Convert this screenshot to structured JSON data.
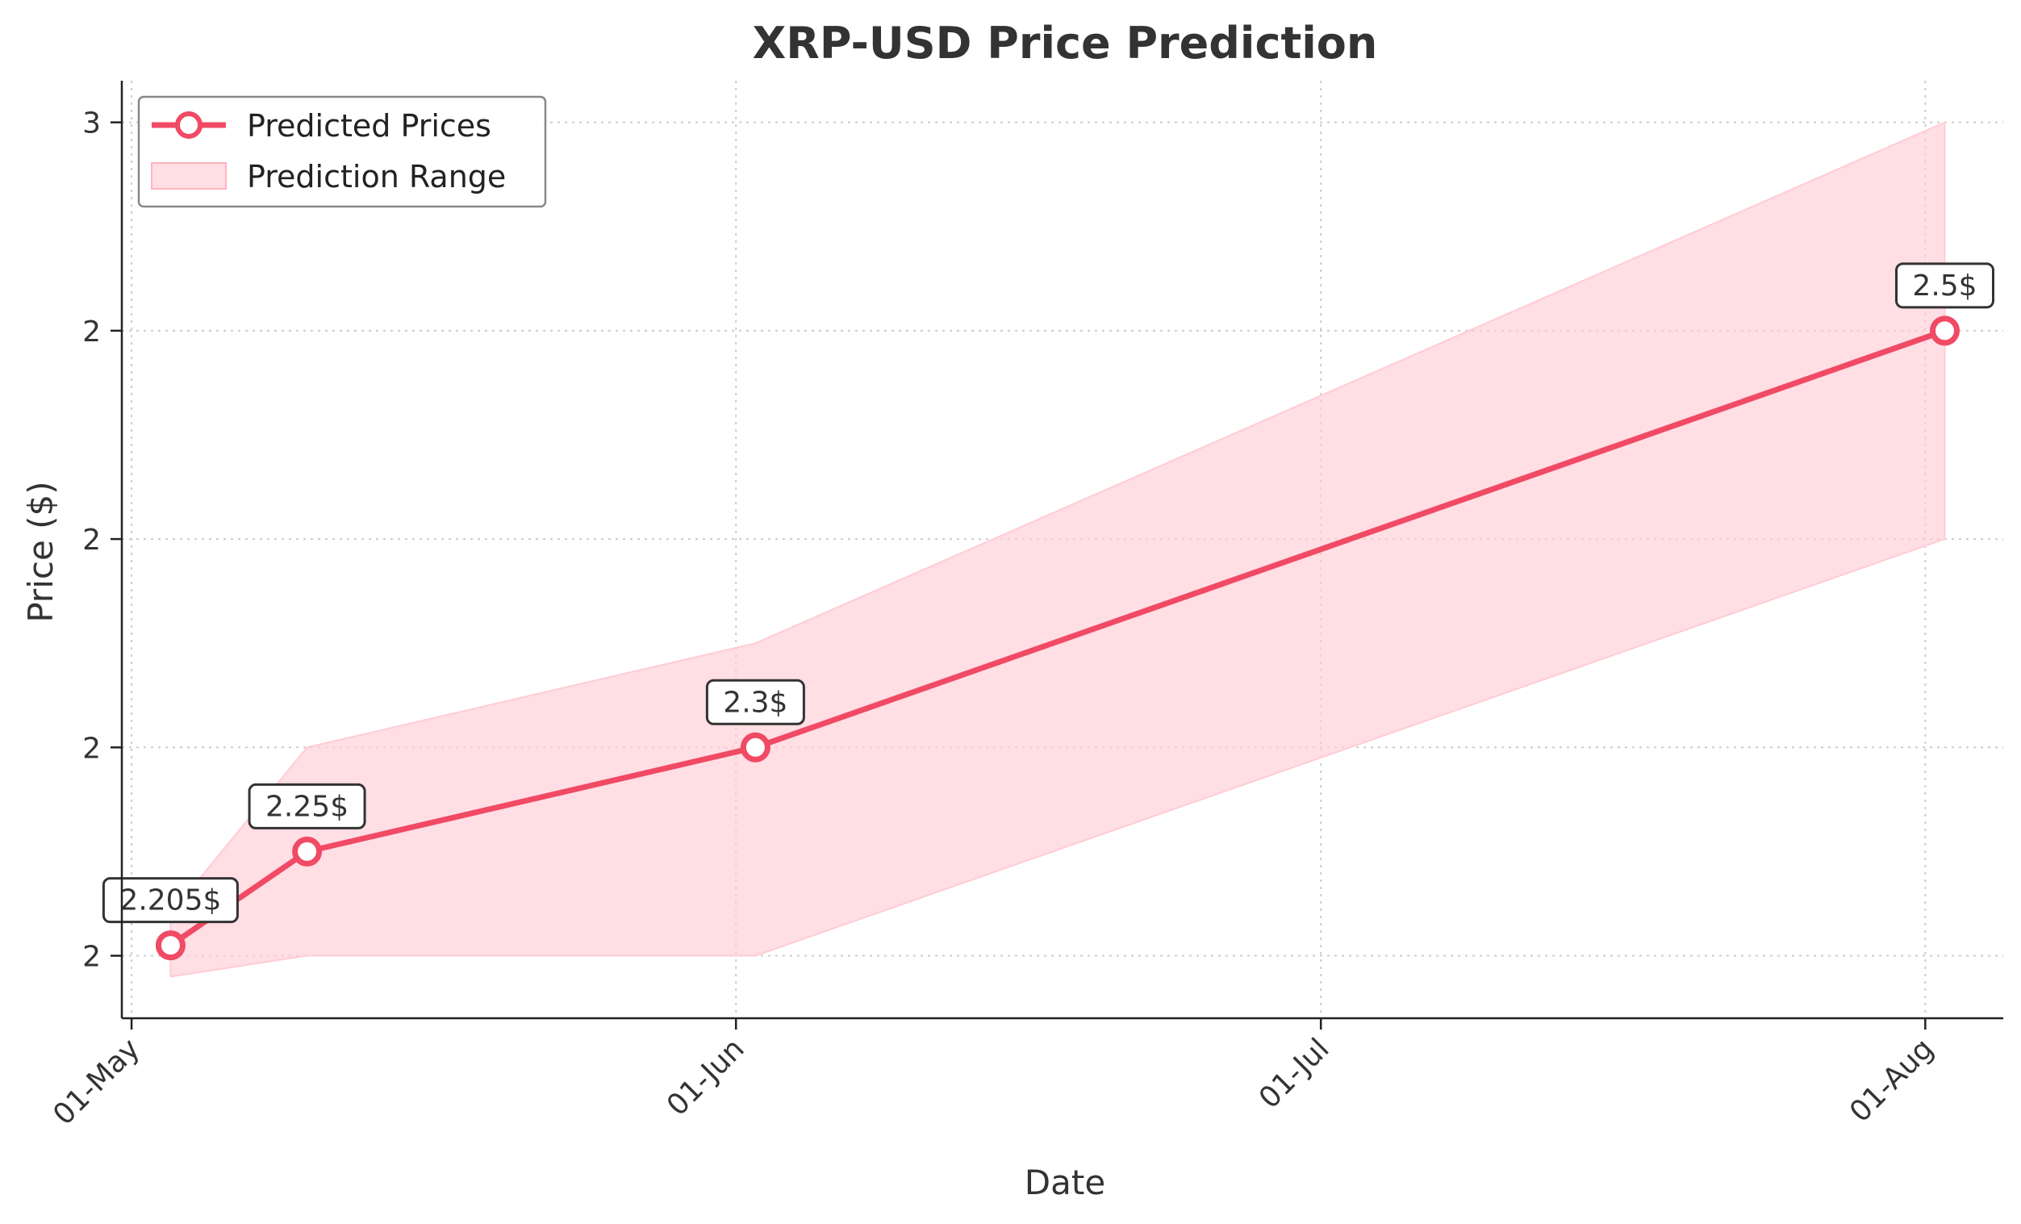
{
  "chart_data": {
    "type": "line",
    "title": "XRP-USD Price Prediction",
    "xlabel": "Date",
    "ylabel": "Price ($)",
    "x_tick_labels": [
      "01-May",
      "01-Jun",
      "01-Jul",
      "01-Aug"
    ],
    "y_tick_labels": [
      "2",
      "2",
      "2",
      "2",
      "3"
    ],
    "legend_placement": "top-left",
    "grid": true,
    "x": [
      "2025-05-03",
      "2025-05-10",
      "2025-06-02",
      "2025-08-02"
    ],
    "series": [
      {
        "name": "Predicted Prices",
        "values": [
          2.205,
          2.25,
          2.3,
          2.5
        ],
        "color": "#f04a64"
      }
    ],
    "range": {
      "name": "Prediction Range",
      "color": "#ffccd5",
      "x": [
        "2025-05-03",
        "2025-05-10",
        "2025-06-02",
        "2025-08-02"
      ],
      "lower": [
        2.19,
        2.2,
        2.2,
        2.4
      ],
      "upper": [
        2.22,
        2.3,
        2.35,
        2.6
      ]
    },
    "data_labels": [
      "2.205$",
      "2.25$",
      "2.3$",
      "2.5$"
    ]
  }
}
